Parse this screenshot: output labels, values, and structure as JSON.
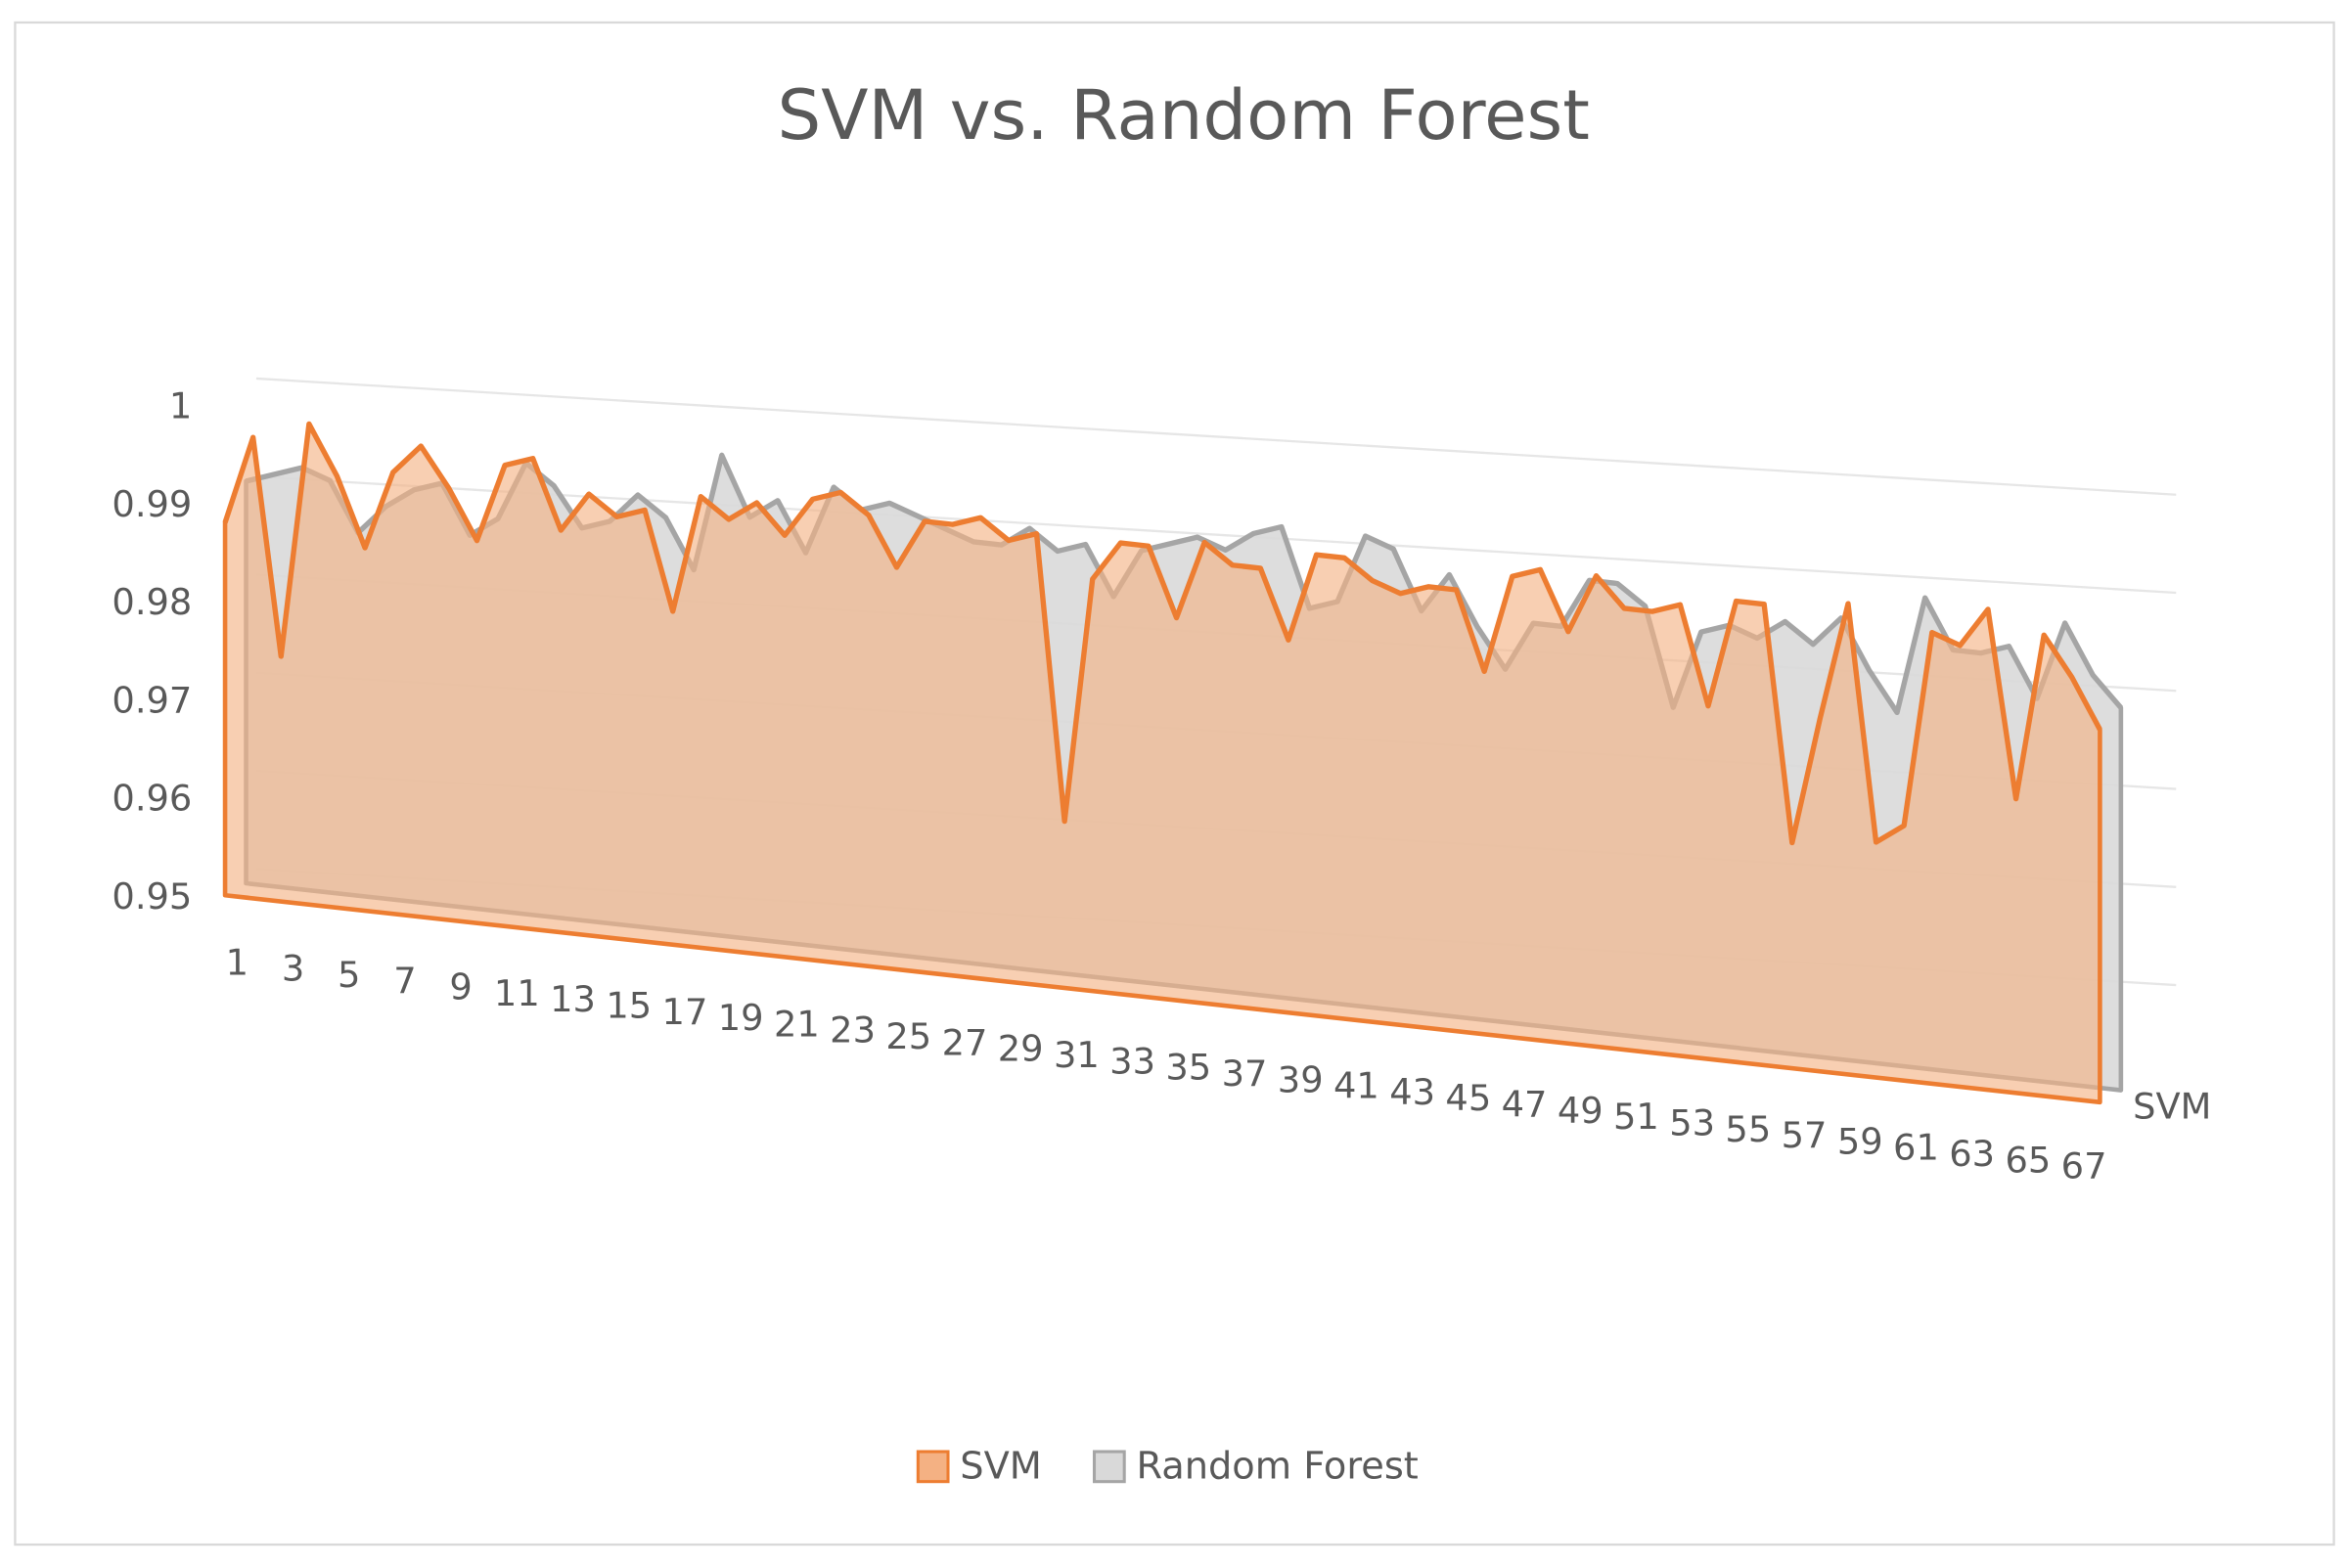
{
  "chart_data": {
    "type": "area3d",
    "title": "SVM vs. Random Forest",
    "categories": [
      1,
      null,
      3,
      null,
      5,
      null,
      7,
      null,
      9,
      null,
      11,
      null,
      13,
      null,
      15,
      null,
      17,
      null,
      19,
      null,
      21,
      null,
      23,
      null,
      25,
      null,
      27,
      null,
      29,
      null,
      31,
      null,
      33,
      null,
      35,
      null,
      37,
      null,
      39,
      null,
      41,
      null,
      43,
      null,
      45,
      null,
      47,
      null,
      49,
      null,
      51,
      null,
      53,
      null,
      55,
      null,
      57,
      null,
      59,
      null,
      61,
      null,
      63,
      null,
      65,
      null,
      67,
      null
    ],
    "series": [
      {
        "name": "SVM",
        "color": "#ED7D31",
        "fill": "#F4B183",
        "values": [
          0.988,
          0.997,
          0.975,
          0.999,
          0.994,
          0.987,
          0.995,
          0.998,
          0.994,
          0.989,
          0.997,
          0.998,
          0.991,
          0.995,
          0.993,
          0.994,
          0.984,
          0.996,
          0.994,
          0.996,
          0.993,
          0.997,
          0.998,
          0.996,
          0.991,
          0.996,
          0.996,
          0.997,
          0.995,
          0.996,
          0.967,
          0.992,
          0.996,
          0.996,
          0.989,
          0.997,
          0.995,
          0.995,
          0.988,
          0.997,
          0.997,
          0.995,
          0.994,
          0.995,
          0.995,
          0.987,
          0.997,
          0.998,
          0.992,
          0.998,
          0.995,
          0.995,
          0.996,
          0.986,
          0.997,
          0.997,
          0.973,
          0.986,
          0.998,
          0.974,
          0.976,
          0.996,
          0.995,
          0.999,
          0.98,
          0.997,
          0.993,
          0.988
        ]
      },
      {
        "name": "Random Forest",
        "color": "#A5A5A5",
        "fill": "#D9D9D9",
        "values": [
          0.991,
          0.992,
          0.993,
          0.992,
          0.987,
          0.99,
          0.992,
          0.993,
          0.988,
          0.99,
          0.996,
          0.994,
          0.99,
          0.991,
          0.994,
          0.992,
          0.987,
          0.999,
          0.993,
          0.995,
          0.99,
          0.997,
          0.995,
          0.996,
          0.995,
          0.994,
          0.993,
          0.993,
          0.995,
          0.993,
          0.994,
          0.989,
          0.994,
          0.995,
          0.996,
          0.995,
          0.997,
          0.998,
          0.99,
          0.991,
          0.998,
          0.997,
          0.991,
          0.995,
          0.99,
          0.986,
          0.991,
          0.991,
          0.996,
          0.996,
          0.994,
          0.984,
          0.992,
          0.993,
          0.992,
          0.994,
          0.992,
          0.995,
          0.99,
          0.986,
          0.998,
          0.993,
          0.993,
          0.994,
          0.989,
          0.997,
          0.992,
          0.989
        ]
      }
    ],
    "ylim": [
      0.95,
      1
    ],
    "yticks": [
      0.95,
      0.96,
      0.97,
      0.98,
      0.99,
      1
    ],
    "grid": true,
    "legend": "bottom"
  }
}
